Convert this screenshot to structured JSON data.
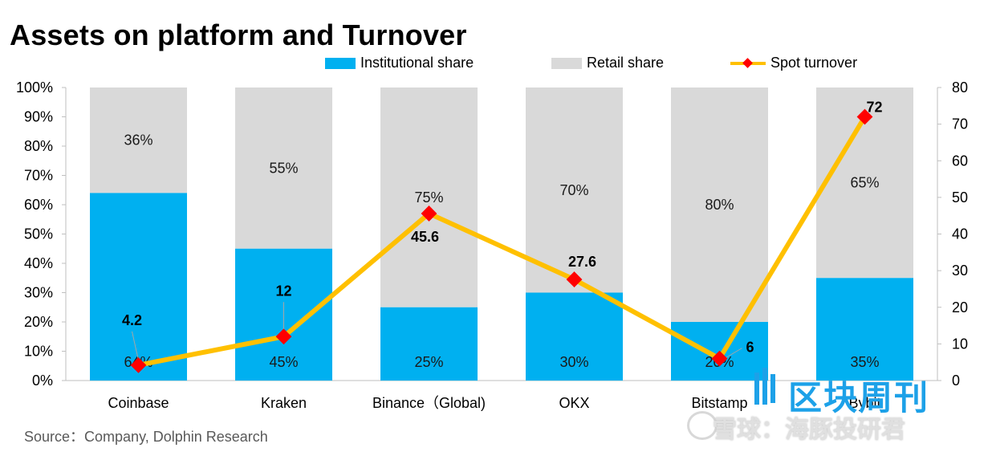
{
  "title": "Assets on platform and Turnover",
  "source": "Source：Company, Dolphin Research",
  "colors": {
    "institutional": "#00b0f0",
    "retail": "#d9d9d9",
    "turnover_line": "#ffc000",
    "turnover_marker": "#ff0000"
  },
  "legend": {
    "institutional": "Institutional share",
    "retail": "Retail share",
    "turnover": "Spot turnover"
  },
  "watermark": {
    "title": "区块周刊",
    "sub": "雪球：海豚投研君"
  },
  "chart_data": {
    "type": "bar",
    "stacked": true,
    "categories": [
      "Coinbase",
      "Kraken",
      "Binance（Global)",
      "OKX",
      "Bitstamp",
      "Bybit"
    ],
    "series": [
      {
        "name": "Institutional share",
        "values": [
          64,
          45,
          25,
          30,
          20,
          35
        ],
        "labels": [
          "64%",
          "45%",
          "25%",
          "30%",
          "20%",
          "35%"
        ],
        "axis": "left"
      },
      {
        "name": "Retail share",
        "values": [
          36,
          55,
          75,
          70,
          80,
          65
        ],
        "labels": [
          "36%",
          "55%",
          "75%",
          "70%",
          "80%",
          "65%"
        ],
        "axis": "left"
      },
      {
        "name": "Spot turnover",
        "type": "line",
        "values": [
          4.2,
          12,
          45.6,
          27.6,
          6,
          72
        ],
        "labels": [
          "4.2",
          "12",
          "45.6",
          "27.6",
          "6",
          "72"
        ],
        "axis": "right"
      }
    ],
    "yaxis_left": {
      "range": [
        0,
        100
      ],
      "ticks": [
        "0%",
        "10%",
        "20%",
        "30%",
        "40%",
        "50%",
        "60%",
        "70%",
        "80%",
        "90%",
        "100%"
      ]
    },
    "yaxis_right": {
      "range": [
        0,
        80
      ],
      "ticks": [
        "0",
        "10",
        "20",
        "30",
        "40",
        "50",
        "60",
        "70",
        "80"
      ]
    },
    "grid": false,
    "legend_position": "top"
  }
}
